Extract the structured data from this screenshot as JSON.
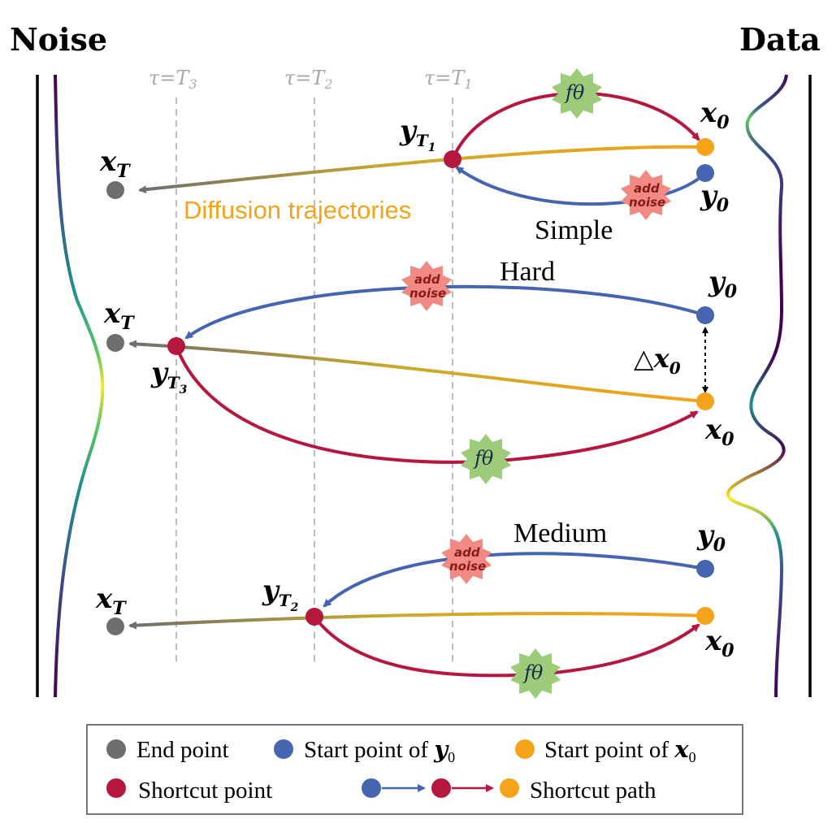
{
  "labels": {
    "noise": "Noise",
    "data": "Data",
    "tau": [
      "τ=T",
      "τ=T",
      "τ=T"
    ],
    "tau_sub": [
      "3",
      "2",
      "1"
    ],
    "x_T": "x",
    "x_T_sub": "T",
    "x_0": "x",
    "y_0": "y",
    "zero": "0",
    "y_T": "y",
    "T1_sub": "T",
    "T1_subsub": "1",
    "T2_subsub": "2",
    "T3_subsub": "3",
    "delta_x0": "△x",
    "diffusion_trajectories": "Diffusion trajectories",
    "simple": "Simple",
    "hard": "Hard",
    "medium": "Medium",
    "add_noise_1": "add",
    "add_noise_2": "noise",
    "f_theta": "fθ"
  },
  "legend": {
    "end_point": "End point",
    "start_y0": "Start point of ",
    "start_y0_sym": "y",
    "start_x0": "Start point of ",
    "start_x0_sym": "x",
    "sub0": "0",
    "shortcut_point": "Shortcut point",
    "shortcut_path": "Shortcut path"
  },
  "colors": {
    "end_point": "#6e6e6e",
    "start_y0": "#4565b0",
    "start_x0": "#f5a31a",
    "shortcut_point": "#b5173f",
    "badge_noise": "#f08a82",
    "badge_f": "#9ccc7a"
  }
}
